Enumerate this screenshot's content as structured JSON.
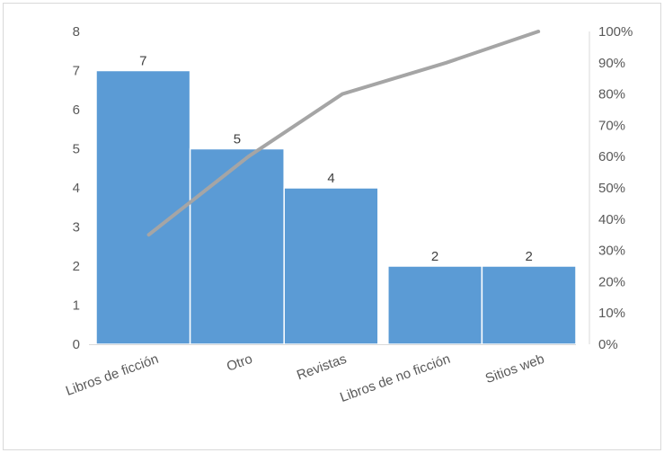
{
  "chart_data": {
    "type": "bar",
    "subtype": "pareto",
    "categories": [
      "Libros de ficción",
      "Otro",
      "Revistas",
      "Libros de no ficción",
      "Sitios web"
    ],
    "series": [
      {
        "kind": "bar",
        "axis": "left",
        "values": [
          7,
          5,
          4,
          2,
          2
        ],
        "color": "#5b9bd5"
      },
      {
        "kind": "line",
        "axis": "right",
        "values": [
          0.35,
          0.6,
          0.8,
          0.9,
          1.0
        ],
        "color": "#a5a5a5"
      }
    ],
    "left_axis": {
      "min": 0,
      "max": 8,
      "ticks": [
        "0",
        "1",
        "2",
        "3",
        "4",
        "5",
        "6",
        "7",
        "8"
      ]
    },
    "right_axis": {
      "min": 0,
      "max": 1,
      "ticks": [
        "0%",
        "10%",
        "20%",
        "30%",
        "40%",
        "50%",
        "60%",
        "70%",
        "80%",
        "90%",
        "100%"
      ]
    },
    "data_labels": [
      "7",
      "5",
      "4",
      "2",
      "2"
    ],
    "grid": false,
    "legend": "none",
    "bar_gap_indices": [
      3
    ]
  }
}
